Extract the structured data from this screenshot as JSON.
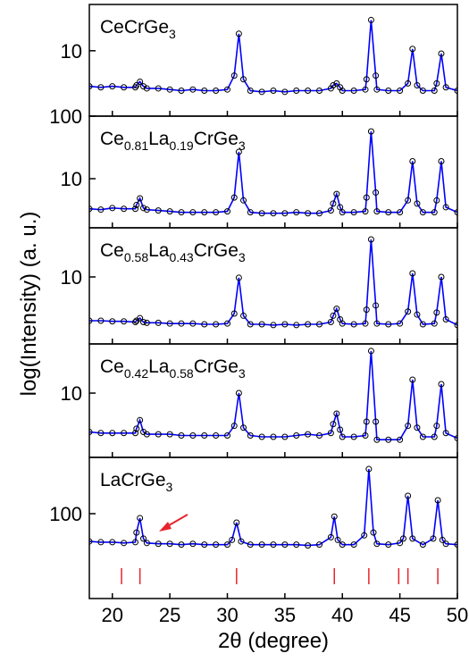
{
  "x_label": "2θ (degree)",
  "y_label": "log(Intensity) (a. u.)",
  "chart_data": [
    {
      "type": "line",
      "title_parts": [
        "CeCrGe",
        "3"
      ],
      "log_y": true,
      "xlim": [
        18,
        50
      ],
      "xticks": [
        20,
        25,
        30,
        35,
        40,
        45,
        50
      ],
      "ylim": [
        0.9,
        55
      ],
      "yticks": [
        10
      ],
      "x": [
        18,
        19,
        20,
        21,
        22,
        22.1,
        22.4,
        22.7,
        23,
        24,
        25,
        26,
        27,
        28,
        29,
        30,
        30.6,
        31,
        31.4,
        32,
        33,
        34,
        35,
        36,
        37,
        38,
        39,
        39.2,
        39.5,
        39.8,
        40,
        41,
        42,
        42.1,
        42.5,
        42.9,
        43,
        44,
        45,
        45.7,
        46.1,
        46.5,
        47,
        48,
        48.2,
        48.6,
        49,
        50
      ],
      "series": [
        {
          "color": "#0000ff",
          "marker_color": "#000000",
          "values": [
            2.7,
            2.6,
            2.7,
            2.6,
            2.6,
            2.8,
            3.2,
            2.7,
            2.5,
            2.5,
            2.4,
            2.3,
            2.4,
            2.3,
            2.3,
            2.4,
            4,
            18.7,
            3.5,
            2.3,
            2.2,
            2.3,
            2.2,
            2.3,
            2.3,
            2.3,
            2.5,
            2.8,
            3.0,
            2.6,
            2.3,
            2.3,
            2.4,
            3.5,
            31,
            4,
            2.4,
            2.3,
            2.3,
            3,
            10.7,
            2.8,
            2.3,
            2.3,
            3,
            9,
            2.6,
            2.3
          ]
        }
      ]
    },
    {
      "type": "line",
      "title_parts": [
        "Ce",
        "0.81",
        "La",
        "0.19",
        "CrGe",
        "3"
      ],
      "log_y": true,
      "xlim": [
        18,
        50
      ],
      "xticks": [
        20,
        25,
        30,
        35,
        40,
        45,
        50
      ],
      "ylim": [
        1.64,
        100
      ],
      "yticks": [
        10,
        100
      ],
      "x": [
        18,
        19,
        20,
        21,
        22,
        22.1,
        22.4,
        22.7,
        23,
        24,
        25,
        26,
        27,
        28,
        29,
        30,
        30.6,
        31,
        31.4,
        32,
        33,
        34,
        35,
        36,
        37,
        38,
        39,
        39.2,
        39.5,
        39.8,
        40,
        41,
        42,
        42.1,
        42.5,
        42.9,
        43,
        44,
        45,
        45.7,
        46.1,
        46.5,
        47,
        48,
        48.2,
        48.6,
        49,
        50
      ],
      "series": [
        {
          "color": "#0000ff",
          "marker_color": "#000000",
          "values": [
            3.3,
            3.2,
            3.4,
            3.3,
            3.3,
            3.8,
            4.85,
            3.4,
            3.2,
            3.1,
            3.0,
            2.9,
            2.9,
            2.9,
            2.9,
            3.0,
            5,
            26.8,
            4.5,
            2.9,
            2.8,
            2.8,
            2.8,
            2.9,
            2.8,
            2.8,
            3.1,
            4,
            5.7,
            3.5,
            2.9,
            2.9,
            3.0,
            5,
            57,
            6,
            3.0,
            2.9,
            2.9,
            4.5,
            19,
            4,
            2.9,
            2.9,
            4.5,
            19,
            3.5,
            2.9
          ]
        }
      ]
    },
    {
      "type": "line",
      "title_parts": [
        "Ce",
        "0.58",
        "La",
        "0.43",
        "CrGe",
        "3"
      ],
      "log_y": true,
      "xlim": [
        18,
        50
      ],
      "xticks": [
        20,
        25,
        30,
        35,
        40,
        45,
        50
      ],
      "ylim": [
        0.85,
        61
      ],
      "yticks": [
        10
      ],
      "x": [
        18,
        19,
        20,
        21,
        22,
        22.1,
        22.4,
        22.7,
        23,
        24,
        25,
        26,
        27,
        28,
        29,
        30,
        30.6,
        31,
        31.4,
        32,
        33,
        34,
        35,
        36,
        37,
        38,
        39,
        39.2,
        39.5,
        39.8,
        40,
        41,
        42,
        42.1,
        42.5,
        42.9,
        43,
        44,
        45,
        45.7,
        46.1,
        46.5,
        47,
        48,
        48.2,
        48.6,
        49,
        50
      ],
      "series": [
        {
          "color": "#0000ff",
          "marker_color": "#000000",
          "values": [
            2.0,
            2.0,
            1.95,
            1.95,
            1.9,
            2.0,
            2.2,
            1.9,
            1.85,
            1.85,
            1.8,
            1.8,
            1.8,
            1.75,
            1.75,
            1.8,
            2.6,
            9.7,
            2.4,
            1.75,
            1.75,
            1.7,
            1.75,
            1.7,
            1.75,
            1.75,
            1.9,
            2.4,
            3.1,
            2.1,
            1.8,
            1.75,
            1.8,
            3,
            39.8,
            3.5,
            1.8,
            1.75,
            1.8,
            2.8,
            11.4,
            2.5,
            1.75,
            1.8,
            2.7,
            10,
            2.1,
            1.7
          ]
        }
      ]
    },
    {
      "type": "line",
      "title_parts": [
        "Ce",
        "0.42",
        "La",
        "0.58",
        "CrGe",
        "3"
      ],
      "log_y": true,
      "xlim": [
        18,
        50
      ],
      "xticks": [
        20,
        25,
        30,
        35,
        40,
        45,
        50
      ],
      "ylim": [
        0.94,
        61
      ],
      "yticks": [
        10
      ],
      "x": [
        18,
        19,
        20,
        21,
        22,
        22.1,
        22.4,
        22.7,
        23,
        24,
        25,
        26,
        27,
        28,
        29,
        30,
        30.6,
        31,
        31.4,
        32,
        33,
        34,
        35,
        36,
        37,
        38,
        39,
        39.2,
        39.5,
        39.8,
        40,
        41,
        42,
        42.1,
        42.5,
        42.9,
        43,
        44,
        45,
        45.7,
        46.1,
        46.5,
        47,
        48,
        48.2,
        48.6,
        49,
        50
      ],
      "series": [
        {
          "color": "#0000ff",
          "marker_color": "#000000",
          "values": [
            2.4,
            2.3,
            2.3,
            2.3,
            2.3,
            2.7,
            3.7,
            2.4,
            2.2,
            2.2,
            2.2,
            2.1,
            2.1,
            2.1,
            2.1,
            2.1,
            3,
            10,
            2.8,
            2.1,
            2.0,
            2.0,
            2.0,
            2.1,
            2.2,
            2.1,
            2.3,
            3.2,
            4.7,
            2.6,
            2.0,
            2.0,
            2.1,
            3.5,
            47,
            3.5,
            1.8,
            1.8,
            1.8,
            3,
            16.4,
            2.8,
            2.0,
            2.0,
            3,
            13.9,
            2.3,
            1.9
          ]
        }
      ]
    },
    {
      "type": "line",
      "title_parts": [
        "LaCrGe",
        "3"
      ],
      "log_y": true,
      "xlim": [
        18,
        50
      ],
      "xticks": [
        20,
        25,
        30,
        35,
        40,
        45,
        50
      ],
      "ylim": [
        4.4,
        794
      ],
      "yticks": [
        100
      ],
      "x": [
        18,
        19,
        20,
        21,
        22,
        22.1,
        22.4,
        22.7,
        23,
        24,
        25,
        26,
        27,
        28,
        29,
        30,
        30.4,
        30.8,
        31.2,
        32,
        33,
        34,
        35,
        36,
        37,
        38,
        39.0,
        39.3,
        39.6,
        40,
        41,
        41.9,
        42.3,
        42.7,
        43,
        44,
        45,
        45.3,
        45.7,
        46.1,
        47,
        47.9,
        48.3,
        48.7,
        49,
        50
      ],
      "series": [
        {
          "color": "#0000ff",
          "marker_color": "#000000",
          "values": [
            36,
            35,
            35,
            34,
            35,
            50,
            85,
            40,
            34,
            33,
            33,
            32,
            33,
            32,
            32,
            32,
            38,
            72,
            36,
            32,
            32,
            32,
            32,
            32,
            31,
            32,
            42,
            90,
            38,
            32,
            32,
            45,
            517,
            50,
            33,
            32,
            34,
            40,
            193,
            40,
            32,
            40,
            164,
            38,
            33,
            32
          ]
        }
      ],
      "reference_x": [
        20.8,
        22.4,
        30.8,
        39.3,
        42.3,
        44.9,
        45.7,
        48.3
      ],
      "reference_color": "#e8242b"
    }
  ]
}
